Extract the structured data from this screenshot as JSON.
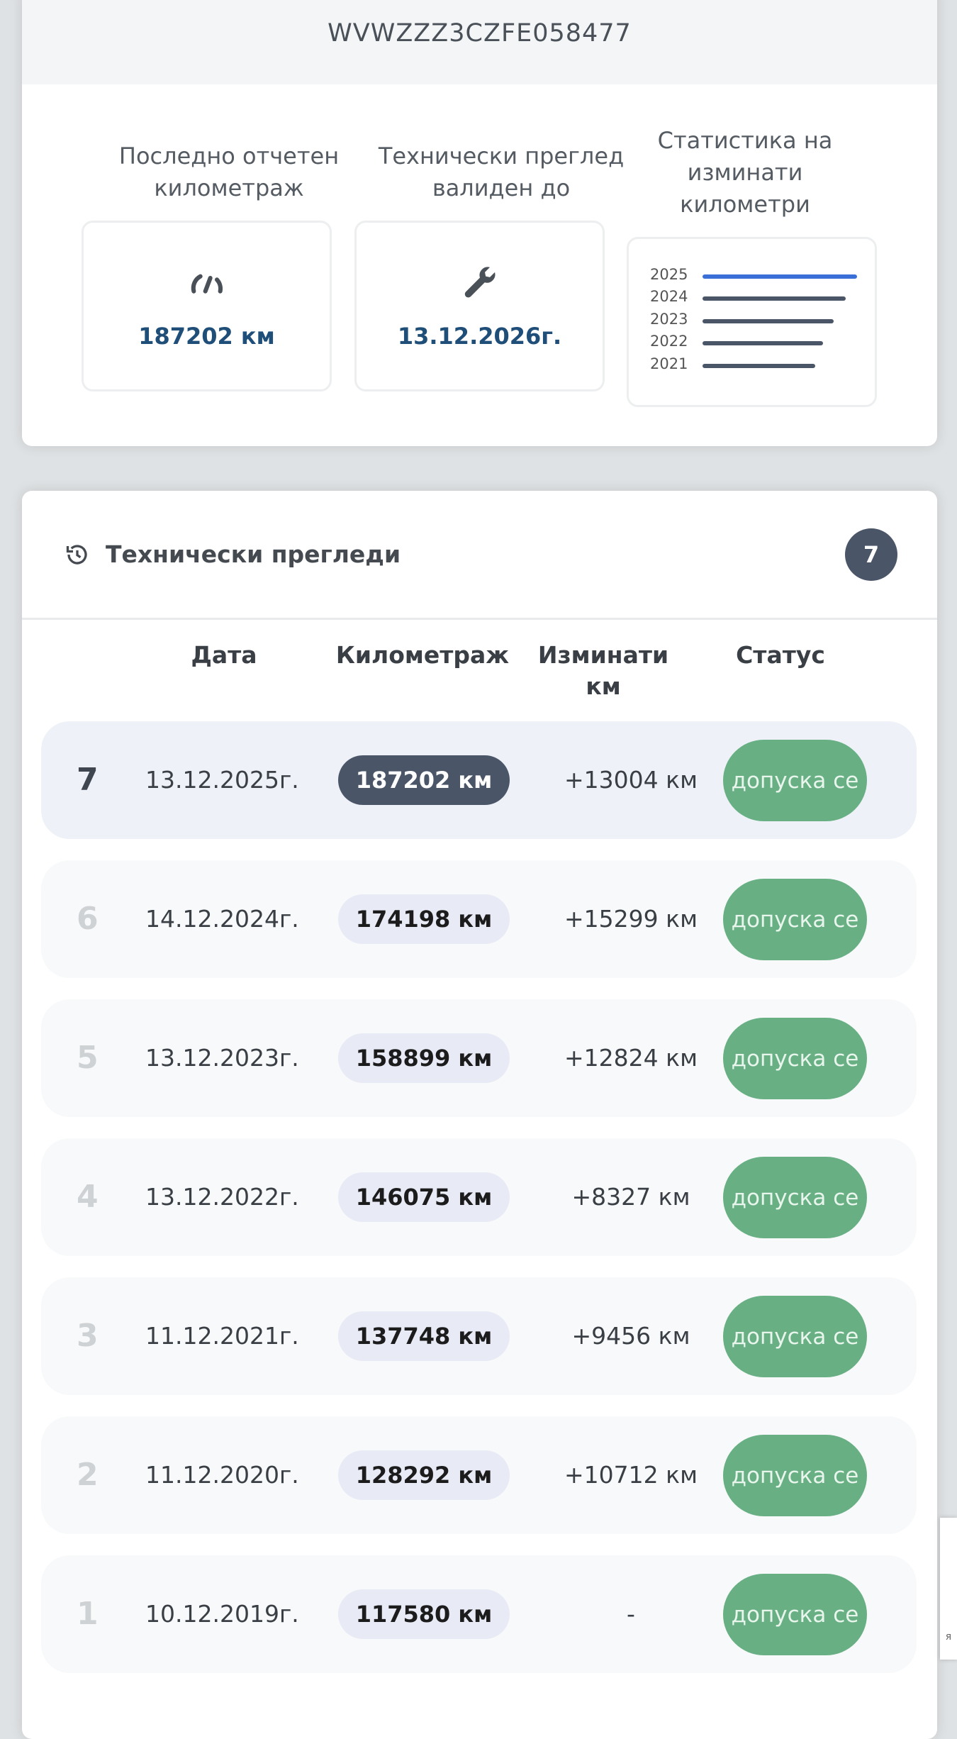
{
  "vehicle": {
    "vin": "WVWZZZ3CZFE058477"
  },
  "summary": {
    "mileage": {
      "label": "Последно отчетен километраж",
      "value": "187202 км",
      "icon": "speedometer-icon"
    },
    "inspection": {
      "label": "Технически преглед валиден до",
      "value": "13.12.2026г.",
      "icon": "wrench-icon"
    },
    "stats": {
      "label": "Статистика на изминати километри",
      "years": [
        "2025",
        "2024",
        "2023",
        "2022",
        "2021"
      ],
      "highlight_color": "#3b6fd8",
      "bar_color": "#4a5568"
    }
  },
  "inspections": {
    "title": "Технически прегледи",
    "count": "7",
    "columns": {
      "date": "Дата",
      "mileage": "Километраж",
      "traveled": "Изминати км",
      "status": "Статус"
    },
    "rows": [
      {
        "n": "7",
        "date": "13.12.2025г.",
        "km": "187202 км",
        "diff": "+13004 км",
        "status": "допуска се"
      },
      {
        "n": "6",
        "date": "14.12.2024г.",
        "km": "174198 км",
        "diff": "+15299 км",
        "status": "допуска се"
      },
      {
        "n": "5",
        "date": "13.12.2023г.",
        "km": "158899 км",
        "diff": "+12824 км",
        "status": "допуска се"
      },
      {
        "n": "4",
        "date": "13.12.2022г.",
        "km": "146075 км",
        "diff": "+8327 км",
        "status": "допуска се"
      },
      {
        "n": "3",
        "date": "11.12.2021г.",
        "km": "137748 км",
        "diff": "+9456 км",
        "status": "допуска се"
      },
      {
        "n": "2",
        "date": "11.12.2020г.",
        "km": "128292 км",
        "diff": "+10712 км",
        "status": "допуска се"
      },
      {
        "n": "1",
        "date": "10.12.2019г.",
        "km": "117580 км",
        "diff": "-",
        "status": "допуска се"
      }
    ]
  },
  "colors": {
    "accent": "#1f4e79",
    "status_ok": "#68b084",
    "dark": "#4a5568"
  }
}
